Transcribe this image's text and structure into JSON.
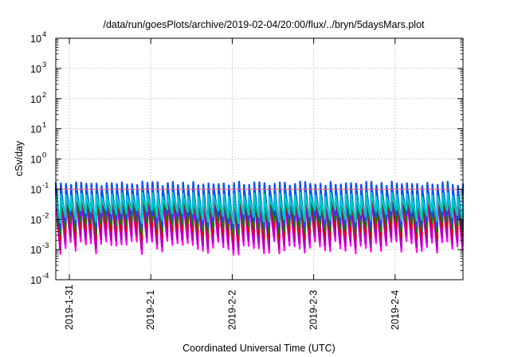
{
  "chart_data": {
    "type": "line",
    "title": "/data/run/goesPlots/archive/2019-02-04/20:00/flux/../bryn/5daysMars.plot",
    "xlabel": "Coordinated Universal Time (UTC)",
    "ylabel": "cSv/day",
    "y_scale": "log",
    "ylim": [
      0.0001,
      10000
    ],
    "y_ticks": [
      {
        "value": 0.0001,
        "base": "10",
        "exp": "-4"
      },
      {
        "value": 0.001,
        "base": "10",
        "exp": "-3"
      },
      {
        "value": 0.01,
        "base": "10",
        "exp": "-2"
      },
      {
        "value": 0.1,
        "base": "10",
        "exp": "-1"
      },
      {
        "value": 1,
        "base": "10",
        "exp": "0"
      },
      {
        "value": 10,
        "base": "10",
        "exp": "1"
      },
      {
        "value": 100,
        "base": "10",
        "exp": "2"
      },
      {
        "value": 1000,
        "base": "10",
        "exp": "3"
      },
      {
        "value": 10000,
        "base": "10",
        "exp": "4"
      }
    ],
    "x_range": [
      "2019-01-30T20:00",
      "2019-02-04T20:00"
    ],
    "x_ticks": [
      "2019-1-31",
      "2019-2-1",
      "2019-2-2",
      "2019-2-3",
      "2019-2-4"
    ],
    "grid": true,
    "legend": "none",
    "oscillation": {
      "period_hours": 1.5,
      "peak_min": 0.12,
      "peak_max": 0.17,
      "trough_min": 0.0012,
      "trough_max": 0.0035
    },
    "series": [
      {
        "color": "#ff00ff",
        "peak_factor": 0.55,
        "trough_factor": 0.55
      },
      {
        "color": "#b000b0",
        "peak_factor": 0.7,
        "trough_factor": 0.8
      },
      {
        "color": "#e00000",
        "peak_factor": 1.0,
        "trough_factor": 1.6
      },
      {
        "color": "#008000",
        "peak_factor": 0.9,
        "trough_factor": 2.5
      },
      {
        "color": "#0050ff",
        "peak_factor": 1.05,
        "trough_factor": 4.0
      },
      {
        "color": "#00c8c8",
        "peak_factor": 0.45,
        "trough_factor": 6.0
      }
    ],
    "reference_line": {
      "value": 0.1,
      "color": "#ff6060"
    }
  }
}
